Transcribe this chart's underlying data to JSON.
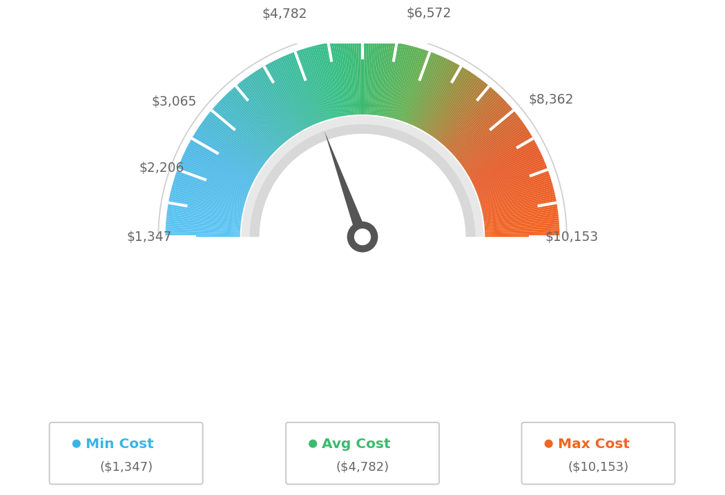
{
  "min_val": 1347,
  "max_val": 10153,
  "avg_val": 4782,
  "label_values": [
    1347,
    2206,
    3065,
    4782,
    6572,
    8362,
    10153
  ],
  "label_texts": [
    "$1,347",
    "$2,206",
    "$3,065",
    "$4,782",
    "$6,572",
    "$8,362",
    "$10,153"
  ],
  "legend": [
    {
      "label": "Min Cost",
      "sublabel": "($1,347)",
      "color": "#3ab5e5",
      "dot_color": "#3ab5e5"
    },
    {
      "label": "Avg Cost",
      "sublabel": "($4,782)",
      "color": "#3dba6e",
      "dot_color": "#3dba6e"
    },
    {
      "label": "Max Cost",
      "sublabel": "($10,153)",
      "color": "#f26522",
      "dot_color": "#f26522"
    }
  ],
  "color_stops": [
    [
      0.0,
      [
        91,
        196,
        244
      ]
    ],
    [
      0.15,
      [
        79,
        185,
        230
      ]
    ],
    [
      0.3,
      [
        66,
        185,
        180
      ]
    ],
    [
      0.45,
      [
        52,
        190,
        130
      ]
    ],
    [
      0.5,
      [
        61,
        186,
        110
      ]
    ],
    [
      0.6,
      [
        100,
        175,
        80
      ]
    ],
    [
      0.68,
      [
        155,
        140,
        60
      ]
    ],
    [
      0.75,
      [
        200,
        110,
        50
      ]
    ],
    [
      0.85,
      [
        230,
        90,
        40
      ]
    ],
    [
      1.0,
      [
        242,
        101,
        34
      ]
    ]
  ],
  "background_color": "#ffffff",
  "needle_color": "#555555",
  "gauge_border_color": "#cccccc",
  "tick_color": "#ffffff"
}
